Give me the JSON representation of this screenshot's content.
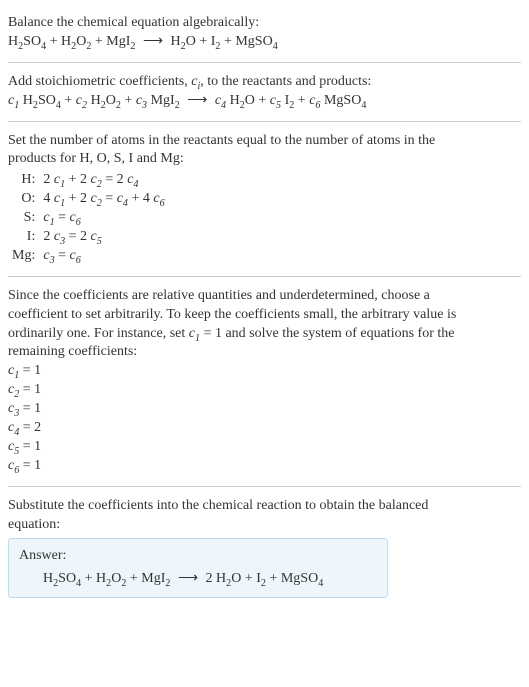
{
  "intro": {
    "title": "Balance the chemical equation algebraically:"
  },
  "chem": {
    "H2SO4": "H",
    "H2SO4_s1": "2",
    "H2SO4_2": "SO",
    "H2SO4_s2": "4",
    "H2O2": "H",
    "H2O2_s1": "2",
    "H2O2_2": "O",
    "H2O2_s2": "2",
    "MgI2": "MgI",
    "MgI2_s": "2",
    "H2O": "H",
    "H2O_s": "2",
    "H2O_2": "O",
    "I2": "I",
    "I2_s": "2",
    "MgSO4": "MgSO",
    "MgSO4_s": "4",
    "plus": " + ",
    "arrow": "⟶"
  },
  "section2": {
    "text_a": "Add stoichiometric coefficients, ",
    "ci": "c",
    "ci_sub": "i",
    "text_b": ", to the reactants and products:"
  },
  "coef": {
    "c": "c",
    "1": "1",
    "2": "2",
    "3": "3",
    "4": "4",
    "5": "5",
    "6": "6"
  },
  "section3": {
    "line1": "Set the number of atoms in the reactants equal to the number of atoms in the",
    "line2": "products for H, O, S, I and Mg:"
  },
  "atoms": {
    "H_lab": "H:",
    "O_lab": "O:",
    "S_lab": "S:",
    "I_lab": "I:",
    "Mg_lab": "Mg:"
  },
  "atom_eq": {
    "H_a": "2 ",
    "H_b": " + 2 ",
    "H_c": " = 2 ",
    "O_a": "4 ",
    "O_b": " + 2 ",
    "O_c": " = ",
    "O_d": " + 4 ",
    "S_a": "",
    "S_b": " = ",
    "I_a": "2 ",
    "I_b": " = 2 ",
    "Mg_a": "",
    "Mg_b": " = "
  },
  "section4": {
    "line1": "Since the coefficients are relative quantities and underdetermined, choose a",
    "line2": "coefficient to set arbitrarily. To keep the coefficients small, the arbitrary value is",
    "line3_a": "ordinarily one. For instance, set ",
    "line3_b": " = 1 and solve the system of equations for the",
    "line4": "remaining coefficients:"
  },
  "results": {
    "eq": " = ",
    "v1": "1",
    "v2": "1",
    "v3": "1",
    "v4": "2",
    "v5": "1",
    "v6": "1"
  },
  "section5": {
    "line1": "Substitute the coefficients into the chemical reaction to obtain the balanced",
    "line2": "equation:"
  },
  "answer": {
    "label": "Answer:",
    "two": "2 "
  },
  "style": {
    "text_color": "#333333",
    "hr_color": "#cccccc",
    "answer_bg": "#edf7fb",
    "answer_border": "#bcdceb",
    "font_family": "Georgia",
    "base_fontsize": 14
  }
}
